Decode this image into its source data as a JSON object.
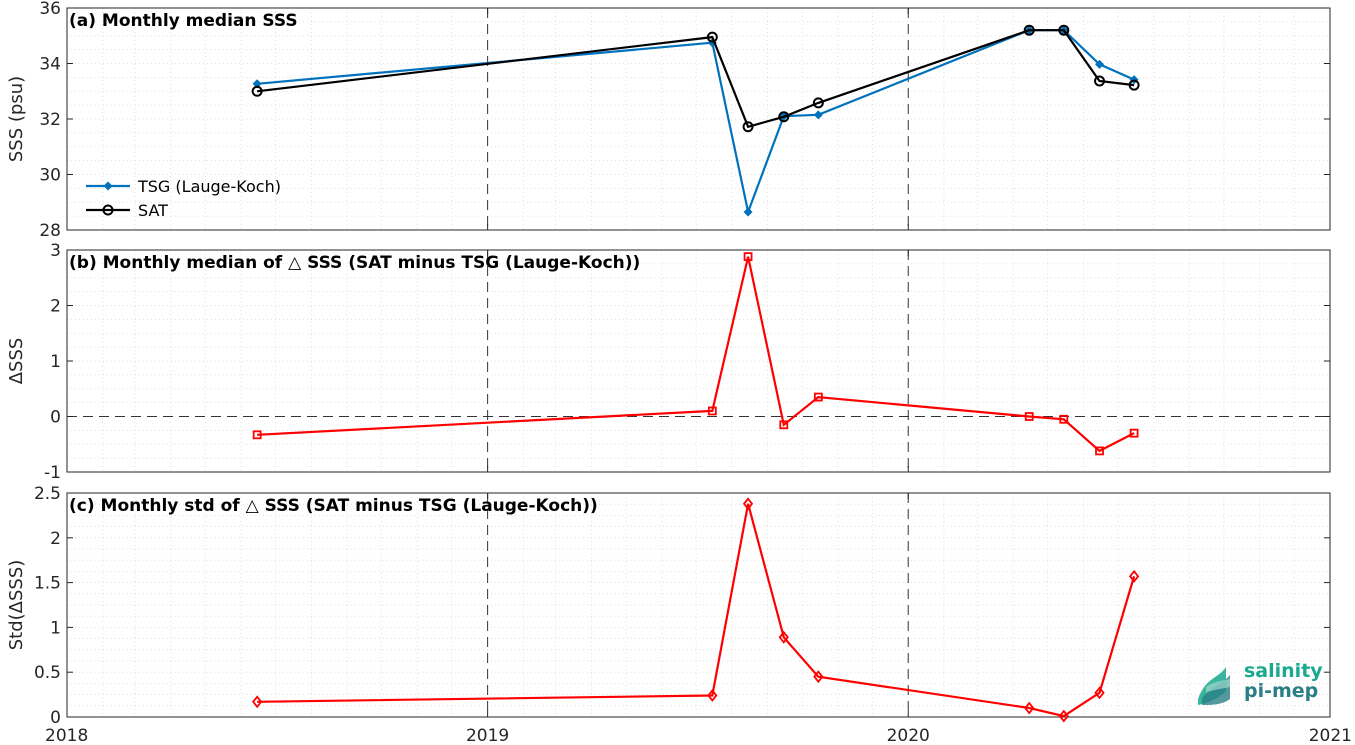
{
  "chart_data": [
    {
      "type": "line",
      "title": "(a) Monthly median SSS",
      "xlabel": "",
      "ylabel": "SSS (psu)",
      "xlim": [
        "2018-01-01",
        "2021-01-01"
      ],
      "ylim": [
        28,
        36
      ],
      "yticks": [
        "28",
        "30",
        "32",
        "34",
        "36"
      ],
      "grid": true,
      "legend_position": "left",
      "series": [
        {
          "name": "TSG (Lauge-Koch)",
          "color": "#0072BD",
          "marker": "filled-dot",
          "x": [
            "2018-06-15",
            "2019-07-15",
            "2019-08-15",
            "2019-09-15",
            "2019-10-15",
            "2020-04-15",
            "2020-05-15",
            "2020-06-15",
            "2020-07-15"
          ],
          "values": [
            33.27,
            34.75,
            28.65,
            32.1,
            32.15,
            35.2,
            35.2,
            33.97,
            33.42
          ]
        },
        {
          "name": "SAT",
          "color": "#000000",
          "marker": "open-circle",
          "x": [
            "2018-06-15",
            "2019-07-15",
            "2019-08-15",
            "2019-09-15",
            "2019-10-15",
            "2020-04-15",
            "2020-05-15",
            "2020-06-15",
            "2020-07-15"
          ],
          "values": [
            33.0,
            34.95,
            31.72,
            32.08,
            32.58,
            35.2,
            35.2,
            33.37,
            33.22
          ]
        }
      ]
    },
    {
      "type": "line",
      "title": "(b) Monthly median of △ SSS (SAT minus TSG (Lauge-Koch))",
      "xlabel": "",
      "ylabel": "ΔSSS",
      "xlim": [
        "2018-01-01",
        "2021-01-01"
      ],
      "ylim": [
        -1,
        3
      ],
      "yticks": [
        "-1",
        "0",
        "1",
        "2",
        "3"
      ],
      "grid": true,
      "reference_line": 0,
      "series": [
        {
          "color": "#FF0000",
          "marker": "square",
          "x": [
            "2018-06-15",
            "2019-07-15",
            "2019-08-15",
            "2019-09-15",
            "2019-10-15",
            "2020-04-15",
            "2020-05-15",
            "2020-06-15",
            "2020-07-15"
          ],
          "values": [
            -0.33,
            0.1,
            2.88,
            -0.15,
            0.35,
            0.0,
            -0.05,
            -0.62,
            -0.3
          ]
        }
      ]
    },
    {
      "type": "line",
      "title": "(c) Monthly std of △ SSS (SAT minus TSG (Lauge-Koch))",
      "xlabel": "",
      "ylabel": "Std(ΔSSS)",
      "xlim": [
        "2018-01-01",
        "2021-01-01"
      ],
      "ylim": [
        0,
        2.5
      ],
      "yticks": [
        "0",
        "0.5",
        "1",
        "1.5",
        "2",
        "2.5"
      ],
      "xticks": [
        "2018",
        "2019",
        "2020",
        "2021"
      ],
      "grid": true,
      "series": [
        {
          "color": "#FF0000",
          "marker": "diamond",
          "x": [
            "2018-06-15",
            "2019-07-15",
            "2019-08-15",
            "2019-09-15",
            "2019-10-15",
            "2020-04-15",
            "2020-05-15",
            "2020-06-15",
            "2020-07-15"
          ],
          "values": [
            0.17,
            0.24,
            2.38,
            0.89,
            0.45,
            0.1,
            0.01,
            0.27,
            1.57
          ]
        }
      ]
    }
  ],
  "logo": {
    "line1": "salinity",
    "line2": "pi-mep",
    "color1": "#1AA88E",
    "color2": "#2A7E86"
  }
}
